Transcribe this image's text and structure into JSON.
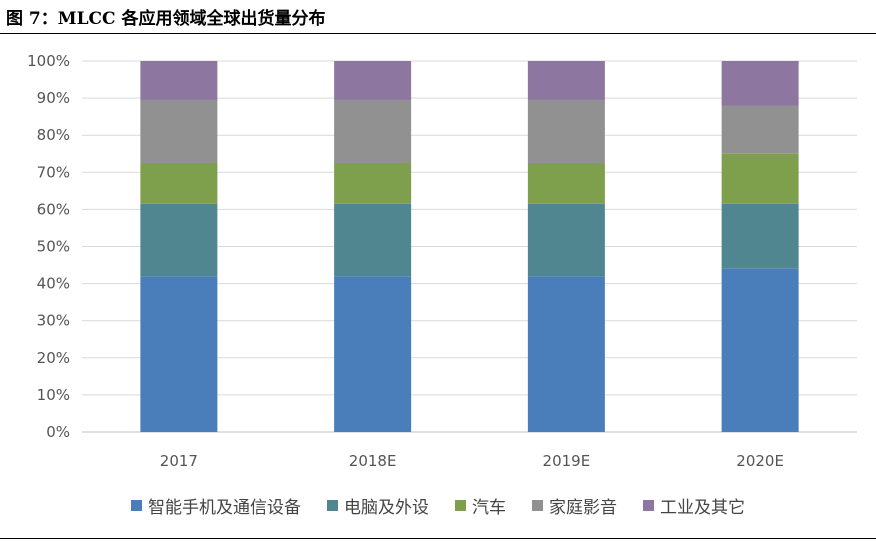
{
  "title": "图 7：MLCC 各应用领域全球出货量分布",
  "chart_data": {
    "type": "bar",
    "stacked": true,
    "categories": [
      "2017",
      "2018E",
      "2019E",
      "2020E"
    ],
    "series": [
      {
        "name": "智能手机及通信设备",
        "color": "#4A7EBB",
        "values": [
          42,
          42,
          42,
          44
        ]
      },
      {
        "name": "电脑及外设",
        "color": "#4F8690",
        "values": [
          19.5,
          19.5,
          19.5,
          17.5
        ]
      },
      {
        "name": "汽车",
        "color": "#7E9F4C",
        "values": [
          11,
          11,
          11,
          13.5
        ]
      },
      {
        "name": "家庭影音",
        "color": "#919191",
        "values": [
          17,
          17,
          17,
          13
        ]
      },
      {
        "name": "工业及其它",
        "color": "#8D77A0",
        "values": [
          10.5,
          10.5,
          10.5,
          12
        ]
      }
    ],
    "yticks": [
      "0%",
      "10%",
      "20%",
      "30%",
      "40%",
      "50%",
      "60%",
      "70%",
      "80%",
      "90%",
      "100%"
    ],
    "ylim": [
      0,
      100
    ],
    "grid": true,
    "legend": "bottom"
  }
}
